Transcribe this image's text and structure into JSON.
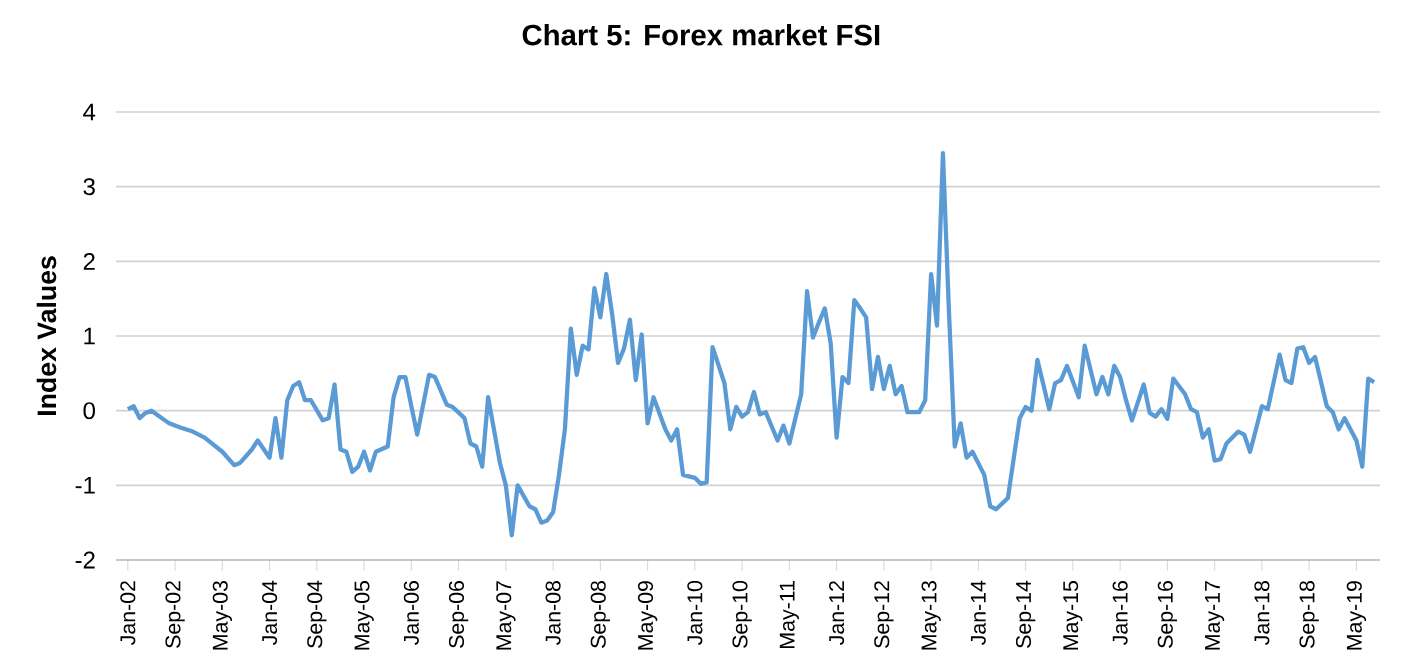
{
  "chart_data": {
    "type": "line",
    "title": "Chart 5: Forex market FSI",
    "ylabel": "Index Values",
    "xlim": [
      "2001-11",
      "2019-09"
    ],
    "ylim": [
      -2,
      4
    ],
    "yticks": [
      -2,
      -1,
      0,
      1,
      2,
      3,
      4
    ],
    "grid": "y",
    "legend": false,
    "marker": "none",
    "line_style": "solid",
    "xticks": [
      {
        "value": "2002-01",
        "label": "Jan-02"
      },
      {
        "value": "2002-09",
        "label": "Sep-02"
      },
      {
        "value": "2003-05",
        "label": "May-03"
      },
      {
        "value": "2004-01",
        "label": "Jan-04"
      },
      {
        "value": "2004-09",
        "label": "Sep-04"
      },
      {
        "value": "2005-05",
        "label": "May-05"
      },
      {
        "value": "2006-01",
        "label": "Jan-06"
      },
      {
        "value": "2006-09",
        "label": "Sep-06"
      },
      {
        "value": "2007-05",
        "label": "May-07"
      },
      {
        "value": "2008-01",
        "label": "Jan-08"
      },
      {
        "value": "2008-09",
        "label": "Sep-08"
      },
      {
        "value": "2009-05",
        "label": "May-09"
      },
      {
        "value": "2010-01",
        "label": "Jan-10"
      },
      {
        "value": "2010-09",
        "label": "Sep-10"
      },
      {
        "value": "2011-05",
        "label": "May-11"
      },
      {
        "value": "2012-01",
        "label": "Jan-12"
      },
      {
        "value": "2012-09",
        "label": "Sep-12"
      },
      {
        "value": "2013-05",
        "label": "May-13"
      },
      {
        "value": "2014-01",
        "label": "Jan-14"
      },
      {
        "value": "2014-09",
        "label": "Sep-14"
      },
      {
        "value": "2015-05",
        "label": "May-15"
      },
      {
        "value": "2016-01",
        "label": "Jan-16"
      },
      {
        "value": "2016-09",
        "label": "Sep-16"
      },
      {
        "value": "2017-05",
        "label": "May-17"
      },
      {
        "value": "2018-01",
        "label": "Jan-18"
      },
      {
        "value": "2018-09",
        "label": "Sep-18"
      },
      {
        "value": "2019-05",
        "label": "May-19"
      }
    ],
    "x": [
      "2002-01",
      "2002-02",
      "2002-03",
      "2002-04",
      "2002-05",
      "2002-08",
      "2002-10",
      "2002-12",
      "2003-02",
      "2003-05",
      "2003-07",
      "2003-08",
      "2003-10",
      "2003-11",
      "2004-01",
      "2004-02",
      "2004-03",
      "2004-04",
      "2004-05",
      "2004-06",
      "2004-07",
      "2004-08",
      "2004-10",
      "2004-11",
      "2004-12",
      "2005-01",
      "2005-02",
      "2005-03",
      "2005-04",
      "2005-05",
      "2005-06",
      "2005-07",
      "2005-09",
      "2005-10",
      "2005-11",
      "2005-12",
      "2006-01",
      "2006-02",
      "2006-04",
      "2006-05",
      "2006-07",
      "2006-08",
      "2006-10",
      "2006-11",
      "2006-12",
      "2007-01",
      "2007-02",
      "2007-04",
      "2007-05",
      "2007-06",
      "2007-07",
      "2007-09",
      "2007-10",
      "2007-11",
      "2007-12",
      "2008-01",
      "2008-02",
      "2008-03",
      "2008-04",
      "2008-05",
      "2008-06",
      "2008-07",
      "2008-08",
      "2008-09",
      "2008-10",
      "2008-11",
      "2008-12",
      "2009-01",
      "2009-02",
      "2009-03",
      "2009-04",
      "2009-05",
      "2009-06",
      "2009-08",
      "2009-09",
      "2009-10",
      "2009-11",
      "2010-01",
      "2010-02",
      "2010-03",
      "2010-04",
      "2010-06",
      "2010-07",
      "2010-08",
      "2010-09",
      "2010-10",
      "2010-11",
      "2010-12",
      "2011-01",
      "2011-03",
      "2011-04",
      "2011-05",
      "2011-07",
      "2011-08",
      "2011-09",
      "2011-10",
      "2011-11",
      "2011-12",
      "2012-01",
      "2012-02",
      "2012-03",
      "2012-04",
      "2012-05",
      "2012-06",
      "2012-07",
      "2012-08",
      "2012-09",
      "2012-10",
      "2012-11",
      "2012-12",
      "2013-01",
      "2013-03",
      "2013-04",
      "2013-05",
      "2013-06",
      "2013-07",
      "2013-08",
      "2013-09",
      "2013-10",
      "2013-11",
      "2013-12",
      "2014-02",
      "2014-03",
      "2014-04",
      "2014-06",
      "2014-07",
      "2014-08",
      "2014-09",
      "2014-10",
      "2014-11",
      "2015-01",
      "2015-02",
      "2015-03",
      "2015-04",
      "2015-06",
      "2015-07",
      "2015-09",
      "2015-10",
      "2015-11",
      "2015-12",
      "2016-01",
      "2016-02",
      "2016-03",
      "2016-05",
      "2016-06",
      "2016-07",
      "2016-08",
      "2016-09",
      "2016-10",
      "2016-12",
      "2017-01",
      "2017-02",
      "2017-03",
      "2017-04",
      "2017-05",
      "2017-06",
      "2017-07",
      "2017-09",
      "2017-10",
      "2017-11",
      "2017-12",
      "2018-01",
      "2018-02",
      "2018-04",
      "2018-05",
      "2018-06",
      "2018-07",
      "2018-08",
      "2018-09",
      "2018-10",
      "2018-12",
      "2019-01",
      "2019-02",
      "2019-03",
      "2019-04",
      "2019-05",
      "2019-06",
      "2019-07",
      "2019-08"
    ],
    "series": [
      {
        "color": "#5b9bd5",
        "values": [
          0.02,
          0.06,
          -0.1,
          -0.03,
          0.0,
          -0.17,
          -0.23,
          -0.28,
          -0.36,
          -0.55,
          -0.73,
          -0.7,
          -0.52,
          -0.4,
          -0.63,
          -0.1,
          -0.63,
          0.14,
          0.33,
          0.38,
          0.14,
          0.14,
          -0.13,
          -0.1,
          0.35,
          -0.52,
          -0.55,
          -0.82,
          -0.75,
          -0.55,
          -0.8,
          -0.55,
          -0.48,
          0.18,
          0.45,
          0.45,
          0.06,
          -0.32,
          0.48,
          0.45,
          0.08,
          0.05,
          -0.1,
          -0.44,
          -0.48,
          -0.75,
          0.18,
          -0.7,
          -1.0,
          -1.67,
          -1.0,
          -1.28,
          -1.32,
          -1.5,
          -1.47,
          -1.36,
          -0.86,
          -0.25,
          1.1,
          0.48,
          0.87,
          0.82,
          1.64,
          1.25,
          1.83,
          1.29,
          0.64,
          0.83,
          1.22,
          0.41,
          1.02,
          -0.17,
          0.18,
          -0.25,
          -0.4,
          -0.25,
          -0.86,
          -0.9,
          -0.98,
          -0.96,
          0.85,
          0.37,
          -0.25,
          0.05,
          -0.08,
          -0.02,
          0.25,
          -0.05,
          -0.02,
          -0.4,
          -0.2,
          -0.44,
          0.22,
          1.6,
          0.98,
          1.18,
          1.37,
          0.9,
          -0.36,
          0.45,
          0.37,
          1.48,
          1.37,
          1.25,
          0.29,
          0.72,
          0.29,
          0.6,
          0.22,
          0.33,
          -0.02,
          -0.02,
          0.14,
          1.83,
          1.14,
          3.45,
          1.37,
          -0.48,
          -0.17,
          -0.63,
          -0.55,
          -0.86,
          -1.28,
          -1.32,
          -1.17,
          -0.63,
          -0.1,
          0.05,
          0.0,
          0.68,
          0.02,
          0.37,
          0.41,
          0.6,
          0.18,
          0.87,
          0.22,
          0.45,
          0.22,
          0.6,
          0.45,
          0.14,
          -0.13,
          0.35,
          -0.03,
          -0.08,
          0.02,
          -0.11,
          0.43,
          0.22,
          0.02,
          -0.02,
          -0.36,
          -0.25,
          -0.67,
          -0.65,
          -0.44,
          -0.28,
          -0.32,
          -0.55,
          -0.25,
          0.06,
          0.02,
          0.75,
          0.41,
          0.37,
          0.83,
          0.85,
          0.64,
          0.72,
          0.06,
          -0.02,
          -0.25,
          -0.1,
          -0.25,
          -0.4,
          -0.75,
          0.43,
          0.38
        ]
      }
    ]
  }
}
